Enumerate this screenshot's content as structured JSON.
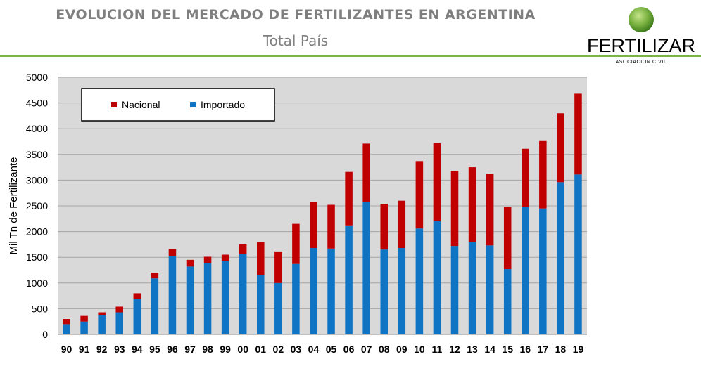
{
  "header": {
    "title": "EVOLUCION DEL MERCADO DE FERTILIZANTES EN ARGENTINA",
    "subtitle": "Total País",
    "title_color": "#7f7f7f",
    "rule_color": "#7cb342"
  },
  "logo": {
    "name": "FERTILIZAR",
    "tagline": "ASOCIACION CIVIL",
    "icon": "green-globe-icon",
    "globe_color": "#7cb342"
  },
  "chart_data": {
    "type": "bar",
    "stacked": true,
    "ylabel": "Mil Tn de Fertilizante",
    "xlabel": "",
    "ylim": [
      0,
      5000
    ],
    "yticks": [
      0,
      500,
      1000,
      1500,
      2000,
      2500,
      3000,
      3500,
      4000,
      4500,
      5000
    ],
    "grid": true,
    "legend_position": "top-left",
    "plot_background": "#d9d9d9",
    "categories": [
      "90",
      "91",
      "92",
      "93",
      "94",
      "95",
      "96",
      "97",
      "98",
      "99",
      "00",
      "01",
      "02",
      "03",
      "04",
      "05",
      "06",
      "07",
      "08",
      "09",
      "10",
      "11",
      "12",
      "13",
      "14",
      "15",
      "16",
      "17",
      "18",
      "19"
    ],
    "series": [
      {
        "name": "Importado",
        "color": "#0f74c4",
        "values": [
          200,
          250,
          370,
          430,
          690,
          1090,
          1530,
          1320,
          1380,
          1430,
          1560,
          1150,
          1000,
          1370,
          1680,
          1670,
          2120,
          2570,
          1650,
          1680,
          2060,
          2200,
          1720,
          1800,
          1730,
          1270,
          2480,
          2450,
          2960,
          3110
        ]
      },
      {
        "name": "Nacional",
        "color": "#c00000",
        "values": [
          100,
          110,
          60,
          110,
          110,
          110,
          130,
          130,
          130,
          120,
          190,
          650,
          600,
          780,
          890,
          850,
          1040,
          1140,
          890,
          920,
          1310,
          1520,
          1460,
          1450,
          1390,
          1210,
          1130,
          1310,
          1340,
          1570
        ]
      }
    ],
    "legend": [
      "Nacional",
      "Importado"
    ]
  }
}
